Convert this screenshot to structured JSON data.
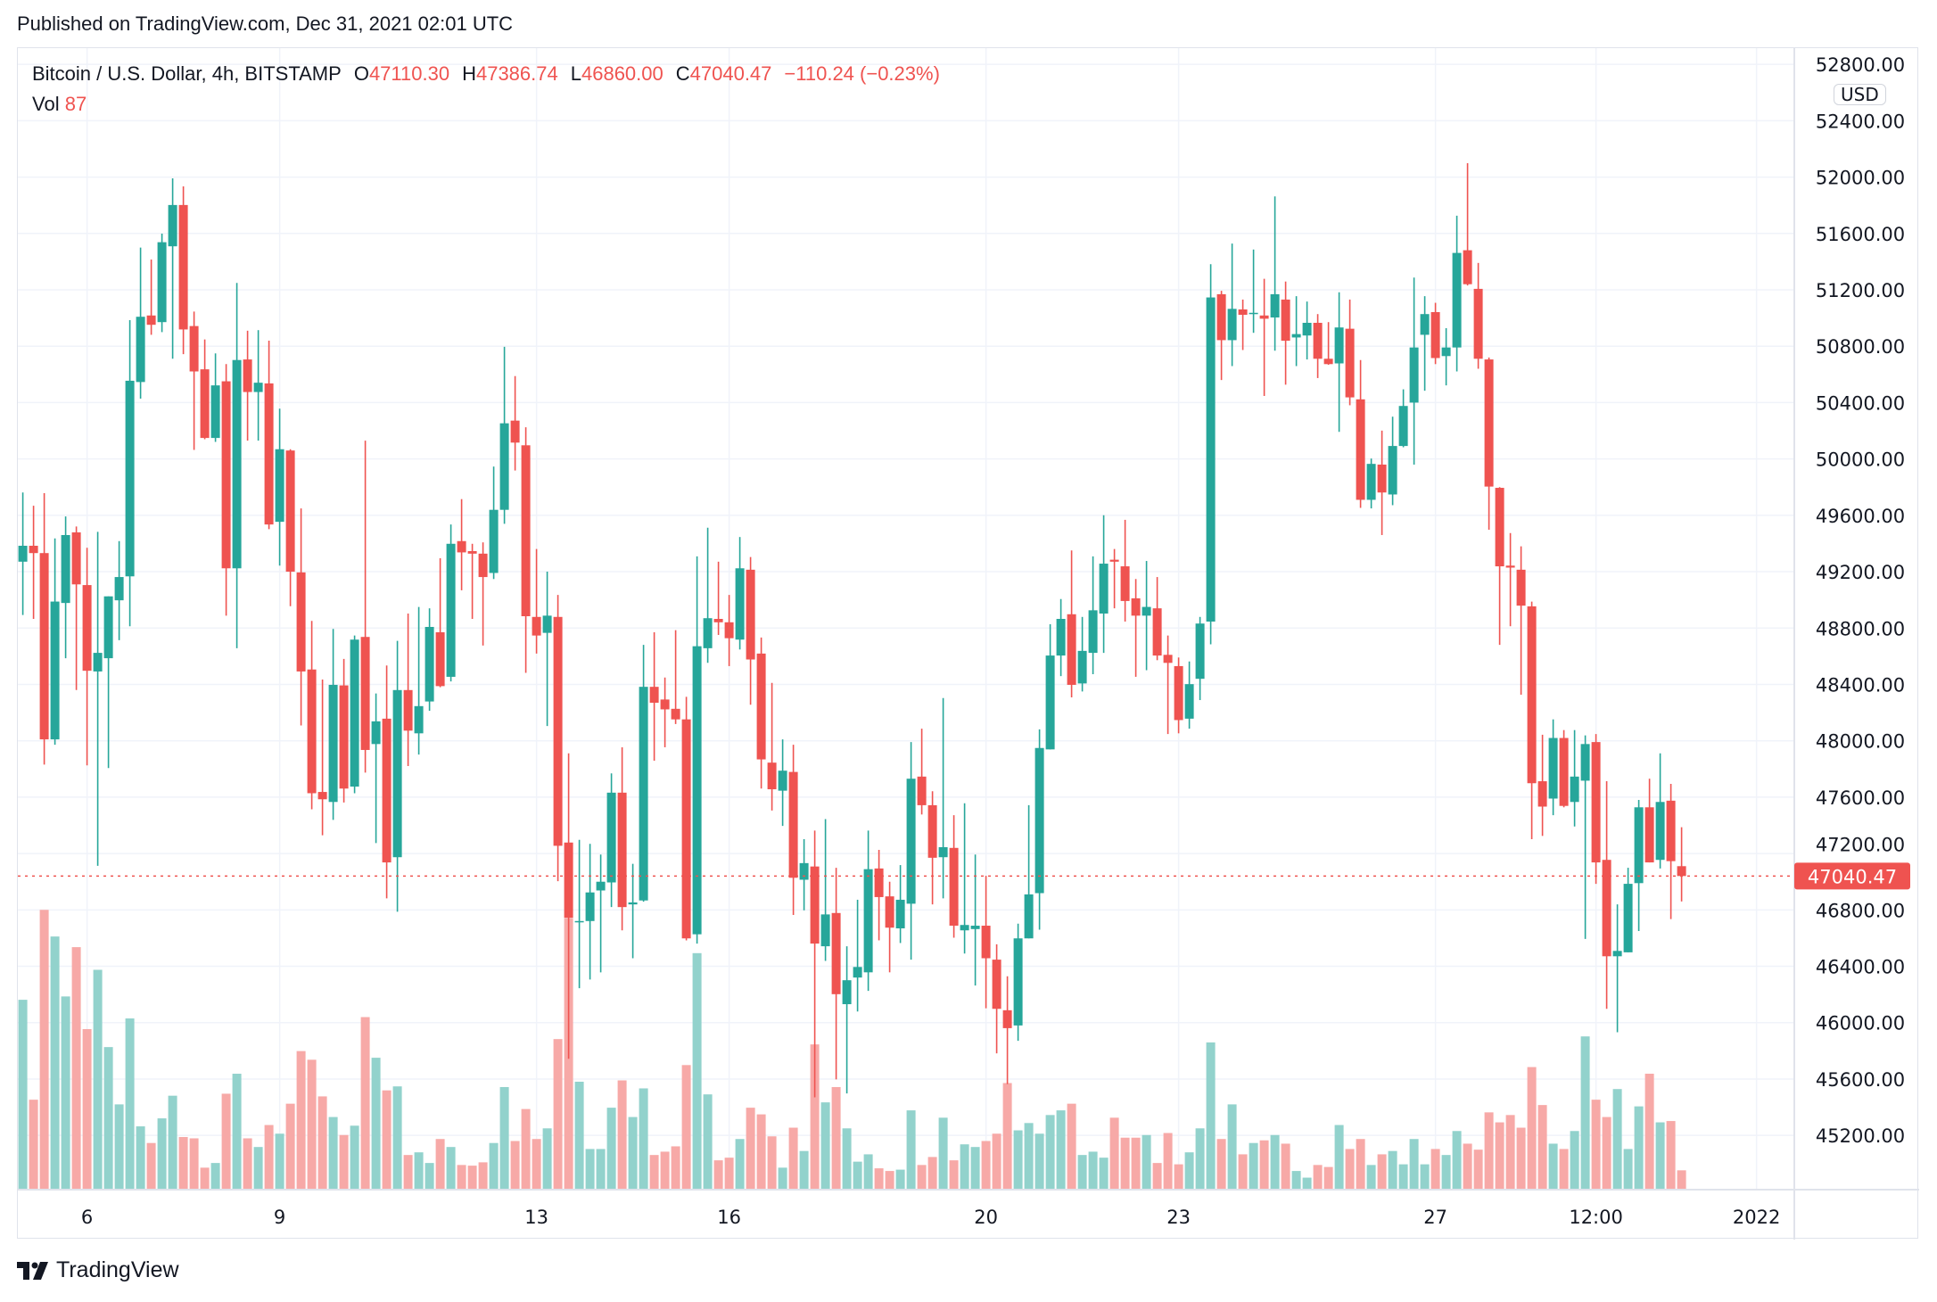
{
  "header": {
    "published": "Published on TradingView.com, Dec 31, 2021 02:01 UTC"
  },
  "legend": {
    "symbol": "Bitcoin / U.S. Dollar, 4h, BITSTAMP",
    "o_label": "O",
    "o_value": "47110.30",
    "h_label": "H",
    "h_value": "47386.74",
    "l_label": "L",
    "l_value": "46860.00",
    "c_label": "C",
    "c_value": "47040.47",
    "change": "−110.24 (−0.23%)",
    "vol_label": "Vol",
    "vol_value": "87"
  },
  "price_axis": {
    "currency": "USD",
    "last_price_label": "47040.47"
  },
  "footer": {
    "logo_text": "TradingView"
  },
  "colors": {
    "up": "#26a69a",
    "down": "#ef5350",
    "up_volume": "#92d2cc",
    "down_volume": "#f7a9a7",
    "grid": "#f0f3fa",
    "last_price": "#ef5350"
  },
  "chart_data": {
    "type": "candlestick",
    "title": "Bitcoin / U.S. Dollar, 4h, BITSTAMP",
    "interval": "4h",
    "ylim": [
      44815,
      52915
    ],
    "grid": true,
    "y_ticks": [
      "45200.00",
      "45600.00",
      "46000.00",
      "46400.00",
      "46800.00",
      "47200.00",
      "47600.00",
      "48000.00",
      "48400.00",
      "48800.00",
      "49200.00",
      "49600.00",
      "50000.00",
      "50400.00",
      "50800.00",
      "51200.00",
      "51600.00",
      "52000.00",
      "52400.00",
      "52800.00"
    ],
    "x_ticks": [
      {
        "label": "6",
        "candle": 6
      },
      {
        "label": "9",
        "candle": 24
      },
      {
        "label": "13",
        "candle": 48
      },
      {
        "label": "16",
        "candle": 66
      },
      {
        "label": "20",
        "candle": 90
      },
      {
        "label": "23",
        "candle": 108
      },
      {
        "label": "27",
        "candle": 132
      },
      {
        "label": "12:00",
        "candle": 147
      },
      {
        "label": "2022",
        "candle": 162
      }
    ],
    "last_price": 47040.47,
    "columns": [
      "open",
      "high",
      "low",
      "close",
      "volume"
    ],
    "candles": [
      [
        49271,
        49762,
        48893,
        49384,
        855
      ],
      [
        49384,
        49668,
        48865,
        49332,
        405
      ],
      [
        49332,
        49757,
        47831,
        48010,
        1260
      ],
      [
        48010,
        49436,
        47972,
        48988,
        1140
      ],
      [
        48978,
        49592,
        48586,
        49460,
        870
      ],
      [
        49479,
        49521,
        48360,
        49110,
        1092
      ],
      [
        49105,
        49370,
        47826,
        48497,
        723
      ],
      [
        48492,
        49483,
        47113,
        48624,
        990
      ],
      [
        48586,
        49025,
        47807,
        49025,
        642
      ],
      [
        48997,
        49417,
        48714,
        49162,
        384
      ],
      [
        49167,
        50985,
        48813,
        50555,
        771
      ],
      [
        50546,
        51500,
        50428,
        51009,
        285
      ],
      [
        51018,
        51415,
        50881,
        50952,
        210
      ],
      [
        50971,
        51599,
        50900,
        51538,
        321
      ],
      [
        51509,
        51991,
        50711,
        51802,
        423
      ],
      [
        51802,
        51934,
        50744,
        50919,
        237
      ],
      [
        50943,
        51046,
        50064,
        50621,
        231
      ],
      [
        50636,
        50848,
        50140,
        50149,
        99
      ],
      [
        50149,
        50749,
        50121,
        50522,
        120
      ],
      [
        50551,
        50673,
        48888,
        49224,
        432
      ],
      [
        49224,
        51249,
        48657,
        50702,
        522
      ],
      [
        50706,
        50910,
        50130,
        50475,
        231
      ],
      [
        50475,
        50914,
        50130,
        50541,
        192
      ],
      [
        50536,
        50839,
        49502,
        49535,
        291
      ],
      [
        49554,
        50357,
        49243,
        50069,
        252
      ],
      [
        50060,
        50069,
        48955,
        49200,
        387
      ],
      [
        49195,
        49649,
        48109,
        48492,
        624
      ],
      [
        48506,
        48851,
        47514,
        47628,
        585
      ],
      [
        47637,
        48435,
        47330,
        47585,
        420
      ],
      [
        47566,
        48794,
        47439,
        48397,
        327
      ],
      [
        48393,
        48581,
        47562,
        47661,
        246
      ],
      [
        47675,
        48747,
        47628,
        48718,
        288
      ],
      [
        48737,
        50130,
        47774,
        47935,
        777
      ],
      [
        47977,
        48336,
        47274,
        48138,
        594
      ],
      [
        48157,
        48534,
        46882,
        47137,
        447
      ],
      [
        47174,
        48709,
        46787,
        48360,
        465
      ],
      [
        48360,
        48903,
        47821,
        48072,
        156
      ],
      [
        48053,
        48950,
        47902,
        48246,
        168
      ],
      [
        48279,
        48940,
        48213,
        48808,
        120
      ],
      [
        48770,
        49295,
        48380,
        48388,
        228
      ],
      [
        48454,
        49535,
        48421,
        49398,
        192
      ],
      [
        49417,
        49715,
        49068,
        49337,
        111
      ],
      [
        49346,
        49398,
        48865,
        49328,
        108
      ],
      [
        49328,
        49408,
        48676,
        49162,
        123
      ],
      [
        49191,
        49946,
        49148,
        49639,
        210
      ],
      [
        49639,
        50796,
        49540,
        50253,
        462
      ],
      [
        50272,
        50588,
        49918,
        50116,
        219
      ],
      [
        50097,
        50225,
        48482,
        48884,
        363
      ],
      [
        48879,
        49361,
        48619,
        48747,
        228
      ],
      [
        48766,
        49200,
        48105,
        48888,
        276
      ],
      [
        48879,
        49035,
        47004,
        47255,
        678
      ],
      [
        47278,
        47911,
        45744,
        46745,
        1224
      ],
      [
        46712,
        47297,
        46244,
        46721,
        486
      ],
      [
        46721,
        47269,
        46306,
        46924,
        183
      ],
      [
        46938,
        47193,
        46357,
        47000,
        183
      ],
      [
        46995,
        47769,
        46820,
        47632,
        369
      ],
      [
        47632,
        47954,
        46655,
        46820,
        492
      ],
      [
        46839,
        47127,
        46457,
        46853,
        327
      ],
      [
        46867,
        48681,
        46858,
        48383,
        456
      ],
      [
        48383,
        48770,
        47859,
        48270,
        156
      ],
      [
        48293,
        48449,
        47954,
        48223,
        171
      ],
      [
        48227,
        48785,
        48119,
        48152,
        195
      ],
      [
        48152,
        48312,
        46584,
        46598,
        561
      ],
      [
        46627,
        49309,
        46561,
        48671,
        1065
      ],
      [
        48657,
        49512,
        48553,
        48870,
        429
      ],
      [
        48865,
        49271,
        48751,
        48841,
        132
      ],
      [
        48841,
        49035,
        48530,
        48728,
        144
      ],
      [
        48718,
        49446,
        48648,
        49224,
        228
      ],
      [
        49214,
        49304,
        48256,
        48577,
        369
      ],
      [
        48619,
        48733,
        47661,
        47868,
        339
      ],
      [
        47845,
        48411,
        47505,
        47656,
        240
      ],
      [
        47646,
        48010,
        47396,
        47788,
        99
      ],
      [
        47779,
        47972,
        46764,
        47028,
        279
      ],
      [
        47014,
        47302,
        46797,
        47132,
        174
      ],
      [
        47108,
        47363,
        45470,
        46561,
        654
      ],
      [
        46542,
        47444,
        46438,
        46768,
        393
      ],
      [
        46778,
        47099,
        45597,
        46202,
        462
      ],
      [
        46131,
        46542,
        45498,
        46301,
        276
      ],
      [
        46320,
        46872,
        46079,
        46395,
        126
      ],
      [
        46357,
        47363,
        46225,
        47089,
        159
      ],
      [
        47094,
        47226,
        46584,
        46891,
        96
      ],
      [
        46896,
        47000,
        46357,
        46674,
        84
      ],
      [
        46669,
        47118,
        46565,
        46872,
        90
      ],
      [
        46844,
        47991,
        46447,
        47731,
        357
      ],
      [
        47746,
        48086,
        47477,
        47543,
        111
      ],
      [
        47543,
        47642,
        46839,
        47170,
        147
      ],
      [
        47174,
        48303,
        46882,
        47245,
        324
      ],
      [
        47240,
        47472,
        46603,
        46688,
        132
      ],
      [
        46655,
        47557,
        46490,
        46693,
        204
      ],
      [
        46664,
        47193,
        46263,
        46688,
        192
      ],
      [
        46688,
        47042,
        46102,
        46457,
        219
      ],
      [
        46447,
        46556,
        45782,
        46098,
        252
      ],
      [
        46088,
        46329,
        45564,
        45961,
        480
      ],
      [
        45980,
        46702,
        45871,
        46598,
        267
      ],
      [
        46598,
        47543,
        46598,
        46910,
        300
      ],
      [
        46919,
        48081,
        46660,
        47949,
        252
      ],
      [
        47939,
        48827,
        47939,
        48605,
        336
      ],
      [
        48605,
        49006,
        48459,
        48865,
        357
      ],
      [
        48898,
        49351,
        48308,
        48397,
        387
      ],
      [
        48407,
        48879,
        48350,
        48638,
        156
      ],
      [
        48624,
        49309,
        48473,
        48926,
        171
      ],
      [
        48903,
        49601,
        48624,
        49257,
        144
      ],
      [
        49285,
        49361,
        48940,
        49271,
        324
      ],
      [
        49238,
        49568,
        48846,
        48992,
        234
      ],
      [
        49011,
        49148,
        48454,
        48888,
        234
      ],
      [
        48888,
        49276,
        48501,
        48950,
        246
      ],
      [
        48940,
        49162,
        48572,
        48605,
        120
      ],
      [
        48610,
        48747,
        48048,
        48553,
        255
      ],
      [
        48530,
        48591,
        48053,
        48147,
        114
      ],
      [
        48157,
        48563,
        48086,
        48402,
        168
      ],
      [
        48440,
        48879,
        48289,
        48832,
        276
      ],
      [
        48846,
        51382,
        48685,
        51146,
        663
      ],
      [
        51169,
        51193,
        50560,
        50843,
        228
      ],
      [
        50843,
        51528,
        50659,
        51065,
        384
      ],
      [
        51061,
        51131,
        50773,
        51023,
        159
      ],
      [
        51028,
        51486,
        50895,
        51037,
        210
      ],
      [
        51018,
        51278,
        50447,
        50995,
        222
      ],
      [
        51004,
        51863,
        50768,
        51169,
        246
      ],
      [
        51131,
        51259,
        50527,
        50839,
        207
      ],
      [
        50862,
        51155,
        50659,
        50886,
        84
      ],
      [
        50876,
        51117,
        50706,
        50966,
        54
      ],
      [
        50966,
        51028,
        50574,
        50711,
        111
      ],
      [
        50711,
        50971,
        50668,
        50673,
        102
      ],
      [
        50678,
        51183,
        50192,
        50933,
        291
      ],
      [
        50924,
        51131,
        50381,
        50437,
        183
      ],
      [
        50423,
        50702,
        49653,
        49710,
        228
      ],
      [
        49710,
        50003,
        49649,
        49965,
        111
      ],
      [
        49960,
        50201,
        49460,
        49762,
        159
      ],
      [
        49748,
        50300,
        49672,
        50092,
        174
      ],
      [
        50092,
        50494,
        50083,
        50376,
        114
      ],
      [
        50400,
        51287,
        49960,
        50791,
        228
      ],
      [
        50881,
        51155,
        50484,
        51028,
        114
      ],
      [
        51042,
        51108,
        50673,
        50716,
        183
      ],
      [
        50730,
        50928,
        50522,
        50791,
        156
      ],
      [
        50791,
        51726,
        50621,
        51462,
        264
      ],
      [
        51481,
        52099,
        51231,
        51240,
        207
      ],
      [
        51207,
        51391,
        50640,
        50711,
        180
      ],
      [
        50706,
        50720,
        49498,
        49804,
        348
      ],
      [
        49795,
        49800,
        48681,
        49238,
        303
      ],
      [
        49243,
        49474,
        48813,
        49229,
        336
      ],
      [
        49214,
        49380,
        48327,
        48959,
        279
      ],
      [
        48954,
        48988,
        47302,
        47699,
        552
      ],
      [
        47713,
        48043,
        47325,
        47533,
        381
      ],
      [
        47590,
        48152,
        47472,
        48020,
        207
      ],
      [
        48020,
        48076,
        47528,
        47538,
        183
      ],
      [
        47566,
        48076,
        47392,
        47746,
        264
      ],
      [
        47717,
        48038,
        46594,
        47977,
        690
      ],
      [
        47991,
        48048,
        46985,
        47137,
        405
      ],
      [
        47155,
        47713,
        46098,
        46471,
        327
      ],
      [
        46471,
        46839,
        45932,
        46509,
        453
      ],
      [
        46499,
        47099,
        46499,
        46985,
        183
      ],
      [
        46990,
        47580,
        46650,
        47528,
        375
      ],
      [
        47528,
        47731,
        47137,
        47137,
        522
      ],
      [
        47155,
        47911,
        47094,
        47566,
        303
      ],
      [
        47575,
        47694,
        46735,
        47146,
        309
      ],
      [
        47110.3,
        47386.74,
        46860.0,
        47040.47,
        87
      ]
    ]
  }
}
